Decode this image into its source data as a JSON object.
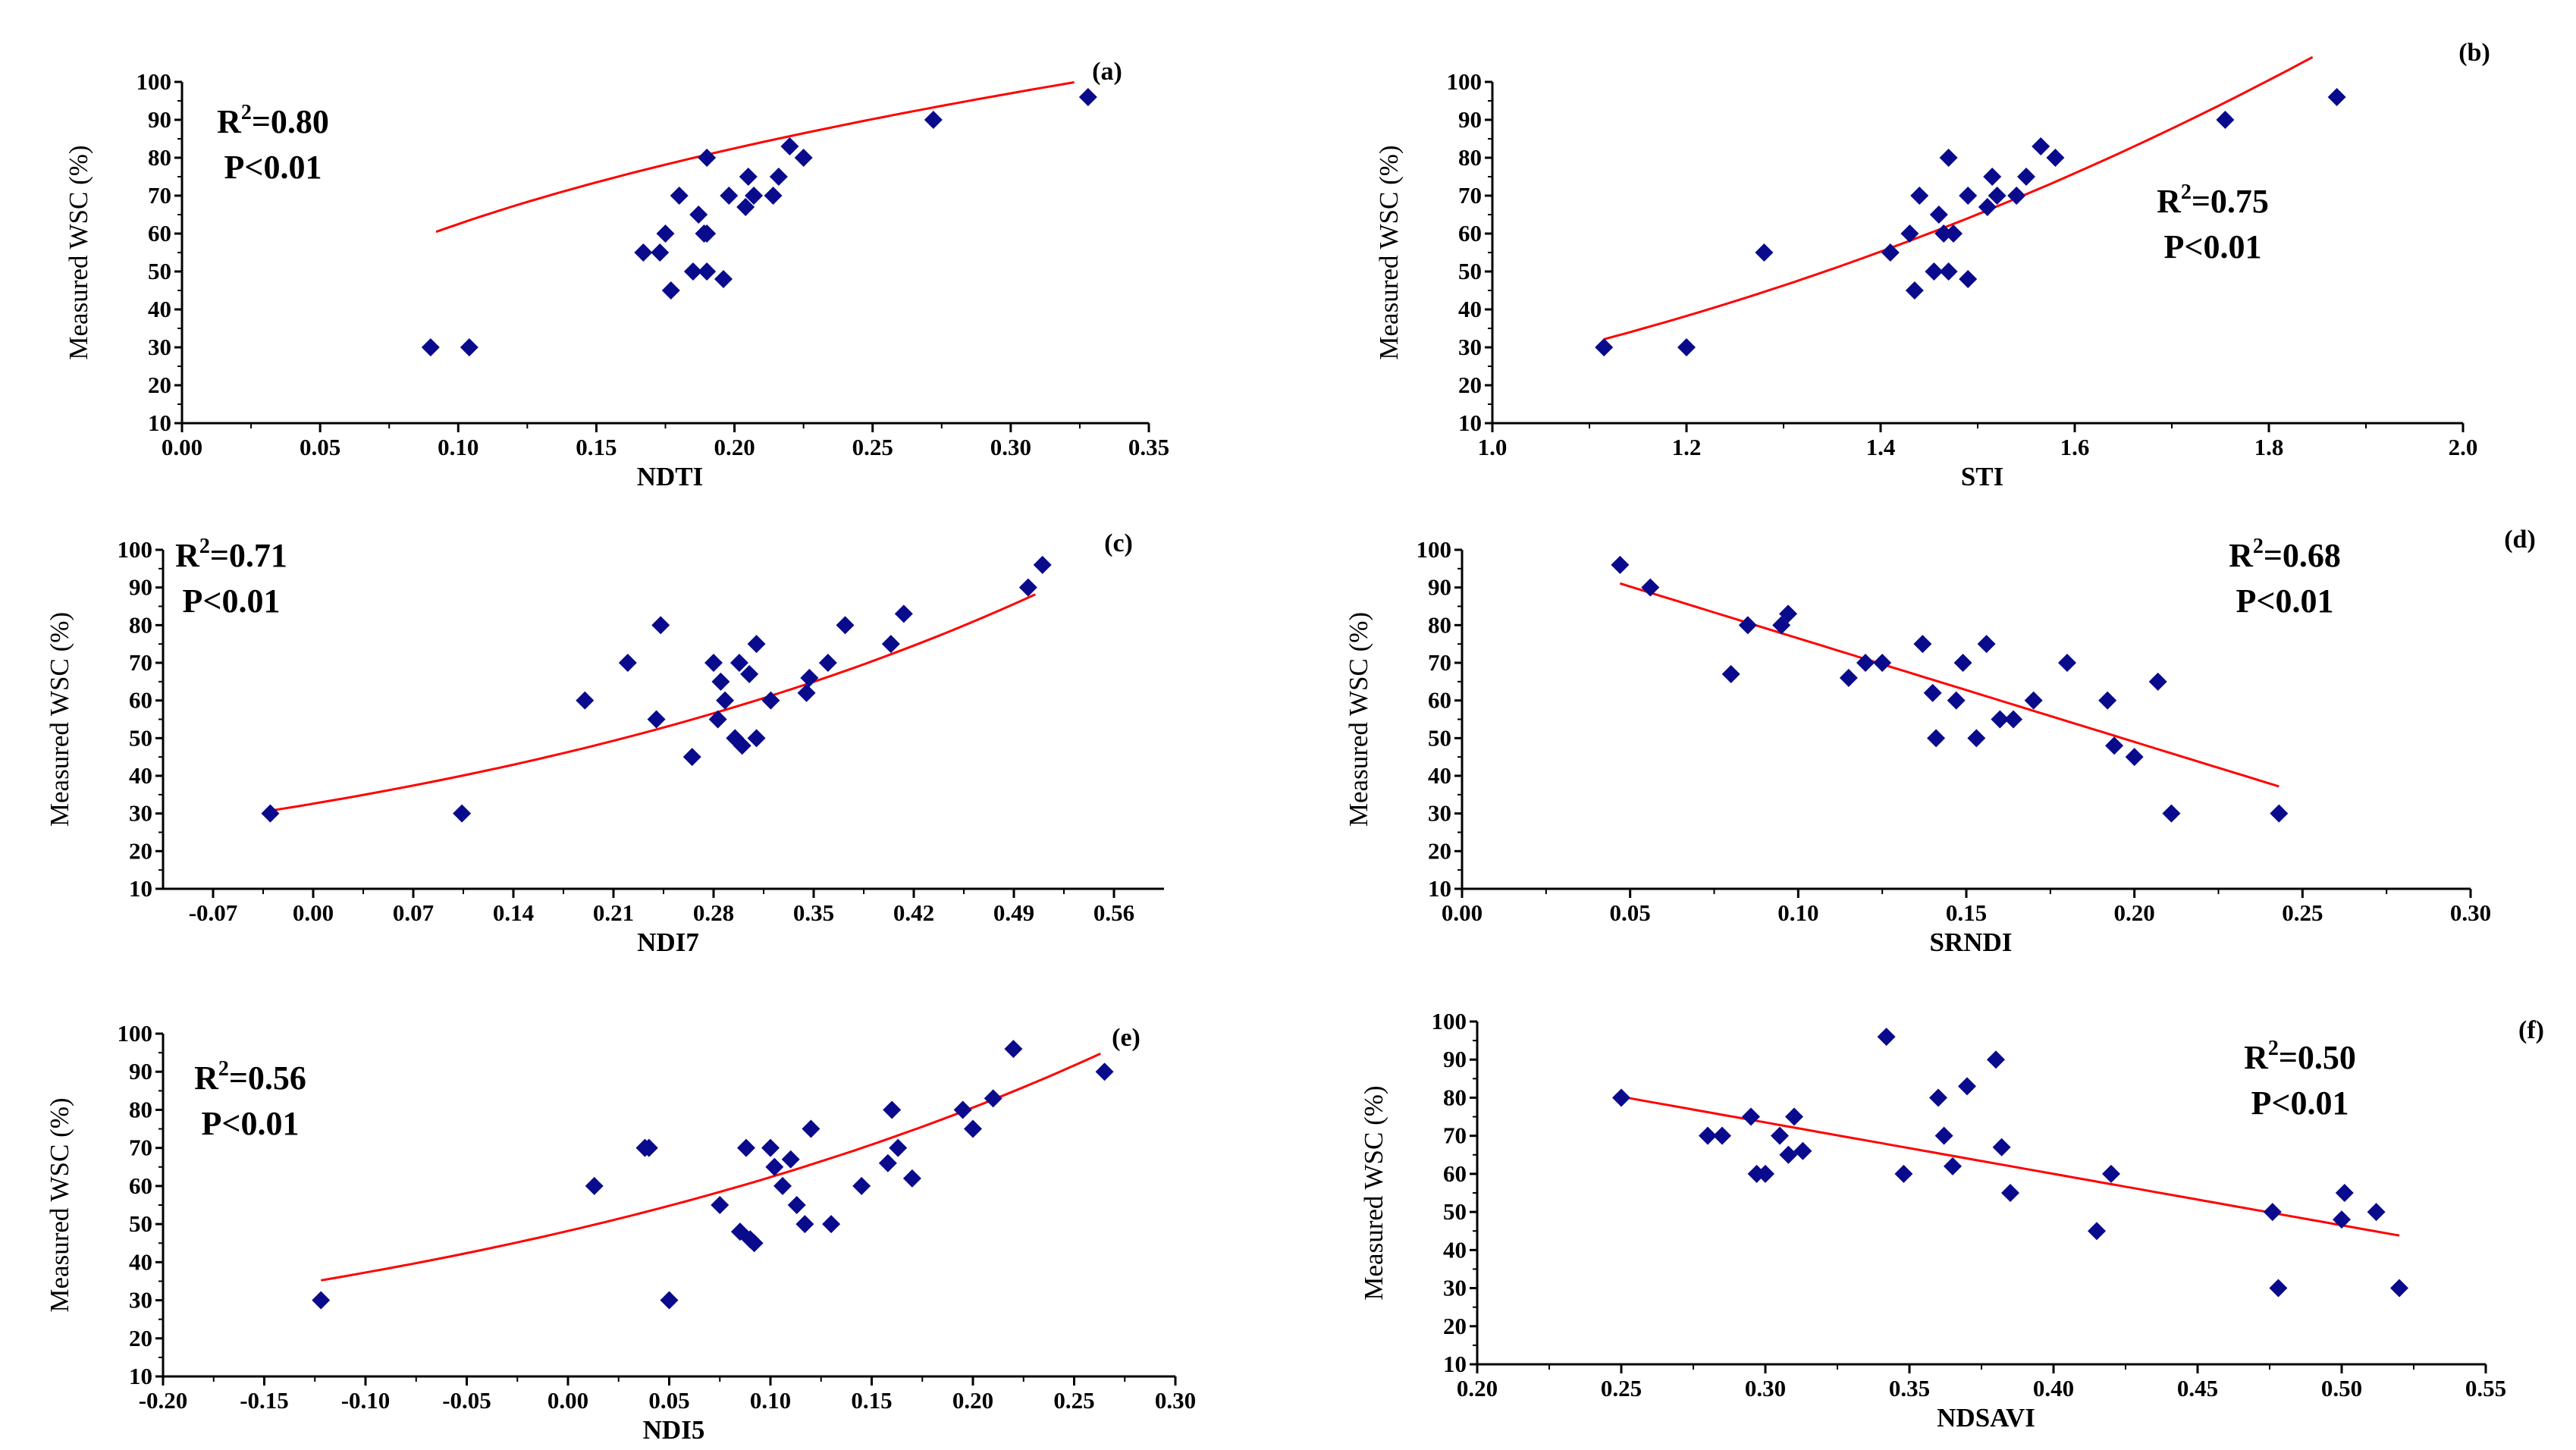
{
  "figure": {
    "ylabel": "Measured WSC (%)",
    "marker_color": "#0a0a8c",
    "fit_color": "#ff0000"
  },
  "chart_data": [
    {
      "type": "scatter",
      "panel": "(a)",
      "xlabel": "NDTI",
      "ylabel": "Measured WSC (%)",
      "xlim": [
        0.0,
        0.35
      ],
      "ylim": [
        10,
        100
      ],
      "xticks": [
        "0.00",
        "0.05",
        "0.10",
        "0.15",
        "0.20",
        "0.25",
        "0.30",
        "0.35"
      ],
      "yticks": [
        "10",
        "20",
        "30",
        "40",
        "50",
        "60",
        "70",
        "80",
        "90",
        "100"
      ],
      "stats": {
        "r2": "R",
        "r2_exp": "2",
        "r2_val": "=0.80",
        "p": "P<0.01",
        "position": "top-left"
      },
      "points": [
        [
          0.09,
          30
        ],
        [
          0.104,
          30
        ],
        [
          0.167,
          55
        ],
        [
          0.173,
          55
        ],
        [
          0.175,
          60
        ],
        [
          0.177,
          45
        ],
        [
          0.18,
          70
        ],
        [
          0.185,
          50
        ],
        [
          0.187,
          65
        ],
        [
          0.189,
          60
        ],
        [
          0.19,
          80
        ],
        [
          0.19,
          60
        ],
        [
          0.19,
          50
        ],
        [
          0.196,
          48
        ],
        [
          0.198,
          70
        ],
        [
          0.204,
          67
        ],
        [
          0.205,
          75
        ],
        [
          0.207,
          70
        ],
        [
          0.214,
          70
        ],
        [
          0.216,
          75
        ],
        [
          0.22,
          83
        ],
        [
          0.225,
          80
        ],
        [
          0.272,
          90
        ],
        [
          0.328,
          96
        ]
      ],
      "fit": {
        "model": "power",
        "a": 157,
        "b": 0.4,
        "x_range": [
          0.092,
          0.323
        ]
      }
    },
    {
      "type": "scatter",
      "panel": "(b)",
      "xlabel": "STI",
      "ylabel": "Measured WSC (%)",
      "xlim": [
        1.0,
        2.0
      ],
      "ylim": [
        10,
        100
      ],
      "xticks": [
        "1.0",
        "1.2",
        "1.4",
        "1.6",
        "1.8",
        "2.0"
      ],
      "yticks": [
        "10",
        "20",
        "30",
        "40",
        "50",
        "60",
        "70",
        "80",
        "90",
        "100"
      ],
      "stats": {
        "r2": "R",
        "r2_exp": "2",
        "r2_val": "=0.75",
        "p": "P<0.01",
        "position": "middle-right"
      },
      "points": [
        [
          1.115,
          30
        ],
        [
          1.2,
          30
        ],
        [
          1.28,
          55
        ],
        [
          1.41,
          55
        ],
        [
          1.43,
          60
        ],
        [
          1.435,
          45
        ],
        [
          1.44,
          70
        ],
        [
          1.455,
          50
        ],
        [
          1.46,
          65
        ],
        [
          1.465,
          60
        ],
        [
          1.47,
          80
        ],
        [
          1.47,
          50
        ],
        [
          1.475,
          60
        ],
        [
          1.49,
          48
        ],
        [
          1.49,
          70
        ],
        [
          1.51,
          67
        ],
        [
          1.515,
          75
        ],
        [
          1.52,
          70
        ],
        [
          1.54,
          70
        ],
        [
          1.55,
          75
        ],
        [
          1.565,
          83
        ],
        [
          1.58,
          80
        ],
        [
          1.755,
          90
        ],
        [
          1.87,
          96
        ]
      ],
      "fit": {
        "model": "power",
        "a": 24.8,
        "b": 2.38,
        "x_range": [
          1.115,
          1.845
        ]
      }
    },
    {
      "type": "scatter",
      "panel": "(c)",
      "xlabel": "NDI7",
      "ylabel": "Measured WSC (%)",
      "xlim": [
        -0.105,
        0.595
      ],
      "ylim": [
        10,
        100
      ],
      "xtick_values": [
        -0.07,
        0.0,
        0.07,
        0.14,
        0.21,
        0.28,
        0.35,
        0.42,
        0.49,
        0.56
      ],
      "xticks": [
        "-0.07",
        "0.00",
        "0.07",
        "0.14",
        "0.21",
        "0.28",
        "0.35",
        "0.42",
        "0.49",
        "0.56"
      ],
      "yticks": [
        "10",
        "20",
        "30",
        "40",
        "50",
        "60",
        "70",
        "80",
        "90",
        "100"
      ],
      "stats": {
        "r2": "R",
        "r2_exp": "2",
        "r2_val": "=0.71",
        "p": "P<0.01",
        "position": "top-left"
      },
      "points": [
        [
          -0.03,
          30
        ],
        [
          0.104,
          30
        ],
        [
          0.19,
          60
        ],
        [
          0.22,
          70
        ],
        [
          0.24,
          55
        ],
        [
          0.243,
          80
        ],
        [
          0.265,
          45
        ],
        [
          0.28,
          70
        ],
        [
          0.283,
          55
        ],
        [
          0.285,
          65
        ],
        [
          0.288,
          60
        ],
        [
          0.295,
          50
        ],
        [
          0.298,
          70
        ],
        [
          0.3,
          48
        ],
        [
          0.305,
          67
        ],
        [
          0.31,
          50
        ],
        [
          0.31,
          75
        ],
        [
          0.32,
          60
        ],
        [
          0.345,
          62
        ],
        [
          0.347,
          66
        ],
        [
          0.36,
          70
        ],
        [
          0.372,
          80
        ],
        [
          0.404,
          75
        ],
        [
          0.413,
          83
        ],
        [
          0.5,
          90
        ],
        [
          0.51,
          96
        ]
      ],
      "fit": {
        "model": "exponential",
        "a": 32.6,
        "b": 1.97,
        "x_range": [
          -0.03,
          0.505
        ]
      }
    },
    {
      "type": "scatter",
      "panel": "(d)",
      "xlabel": "SRNDI",
      "ylabel": "Measured WSC (%)",
      "xlim": [
        0.0,
        0.3
      ],
      "ylim": [
        10,
        100
      ],
      "xticks": [
        "0.00",
        "0.05",
        "0.10",
        "0.15",
        "0.20",
        "0.25",
        "0.30"
      ],
      "yticks": [
        "10",
        "20",
        "30",
        "40",
        "50",
        "60",
        "70",
        "80",
        "90",
        "100"
      ],
      "stats": {
        "r2": "R",
        "r2_exp": "2",
        "r2_val": "=0.68",
        "p": "P<0.01",
        "position": "top-right"
      },
      "points": [
        [
          0.047,
          96
        ],
        [
          0.056,
          90
        ],
        [
          0.08,
          67
        ],
        [
          0.085,
          80
        ],
        [
          0.095,
          80
        ],
        [
          0.097,
          83
        ],
        [
          0.115,
          66
        ],
        [
          0.12,
          70
        ],
        [
          0.125,
          70
        ],
        [
          0.137,
          75
        ],
        [
          0.14,
          62
        ],
        [
          0.141,
          50
        ],
        [
          0.147,
          60
        ],
        [
          0.149,
          70
        ],
        [
          0.153,
          50
        ],
        [
          0.156,
          75
        ],
        [
          0.16,
          55
        ],
        [
          0.164,
          55
        ],
        [
          0.17,
          60
        ],
        [
          0.18,
          70
        ],
        [
          0.192,
          60
        ],
        [
          0.194,
          48
        ],
        [
          0.2,
          45
        ],
        [
          0.207,
          65
        ],
        [
          0.211,
          30
        ],
        [
          0.243,
          30
        ]
      ],
      "fit": {
        "model": "linear",
        "slope": -275,
        "intercept": 104,
        "x_range": [
          0.047,
          0.243
        ]
      }
    },
    {
      "type": "scatter",
      "panel": "(e)",
      "xlabel": "NDI5",
      "ylabel": "Measured WSC (%)",
      "xlim": [
        -0.2,
        0.3
      ],
      "ylim": [
        10,
        100
      ],
      "xticks": [
        "-0.20",
        "-0.15",
        "-0.10",
        "-0.05",
        "0.00",
        "0.05",
        "0.10",
        "0.15",
        "0.20",
        "0.25",
        "0.30"
      ],
      "yticks": [
        "10",
        "20",
        "30",
        "40",
        "50",
        "60",
        "70",
        "80",
        "90",
        "100"
      ],
      "stats": {
        "r2": "R",
        "r2_exp": "2",
        "r2_val": "=0.56",
        "p": "P<0.01",
        "position": "top-left"
      },
      "points": [
        [
          -0.122,
          30
        ],
        [
          0.013,
          60
        ],
        [
          0.038,
          70
        ],
        [
          0.04,
          70
        ],
        [
          0.05,
          30
        ],
        [
          0.075,
          55
        ],
        [
          0.085,
          48
        ],
        [
          0.088,
          70
        ],
        [
          0.09,
          46
        ],
        [
          0.092,
          45
        ],
        [
          0.1,
          70
        ],
        [
          0.102,
          65
        ],
        [
          0.106,
          60
        ],
        [
          0.11,
          67
        ],
        [
          0.113,
          55
        ],
        [
          0.117,
          50
        ],
        [
          0.12,
          75
        ],
        [
          0.13,
          50
        ],
        [
          0.145,
          60
        ],
        [
          0.158,
          66
        ],
        [
          0.16,
          80
        ],
        [
          0.163,
          70
        ],
        [
          0.17,
          62
        ],
        [
          0.195,
          80
        ],
        [
          0.2,
          75
        ],
        [
          0.21,
          83
        ],
        [
          0.22,
          96
        ],
        [
          0.265,
          90
        ]
      ],
      "fit": {
        "model": "exponential",
        "a": 48.2,
        "b": 2.57,
        "x_range": [
          -0.122,
          0.263
        ]
      }
    },
    {
      "type": "scatter",
      "panel": "(f)",
      "xlabel": "NDSAVI",
      "ylabel": "Measured WSC (%)",
      "xlim": [
        0.2,
        0.55
      ],
      "ylim": [
        10,
        100
      ],
      "xticks": [
        "0.20",
        "0.25",
        "0.30",
        "0.35",
        "0.40",
        "0.45",
        "0.50",
        "0.55"
      ],
      "yticks": [
        "10",
        "20",
        "30",
        "40",
        "50",
        "60",
        "70",
        "80",
        "90",
        "100"
      ],
      "stats": {
        "r2": "R",
        "r2_exp": "2",
        "r2_val": "=0.50",
        "p": "P<0.01",
        "position": "top-right"
      },
      "points": [
        [
          0.25,
          80
        ],
        [
          0.28,
          70
        ],
        [
          0.285,
          70
        ],
        [
          0.295,
          75
        ],
        [
          0.297,
          60
        ],
        [
          0.3,
          60
        ],
        [
          0.305,
          70
        ],
        [
          0.308,
          65
        ],
        [
          0.31,
          75
        ],
        [
          0.313,
          66
        ],
        [
          0.342,
          96
        ],
        [
          0.348,
          60
        ],
        [
          0.36,
          80
        ],
        [
          0.362,
          70
        ],
        [
          0.365,
          62
        ],
        [
          0.37,
          83
        ],
        [
          0.38,
          90
        ],
        [
          0.382,
          67
        ],
        [
          0.385,
          55
        ],
        [
          0.415,
          45
        ],
        [
          0.42,
          60
        ],
        [
          0.476,
          50
        ],
        [
          0.478,
          30
        ],
        [
          0.5,
          48
        ],
        [
          0.501,
          55
        ],
        [
          0.512,
          50
        ],
        [
          0.52,
          30
        ]
      ],
      "fit": {
        "model": "linear",
        "slope": -135,
        "intercept": 114,
        "x_range": [
          0.25,
          0.52
        ]
      }
    }
  ]
}
